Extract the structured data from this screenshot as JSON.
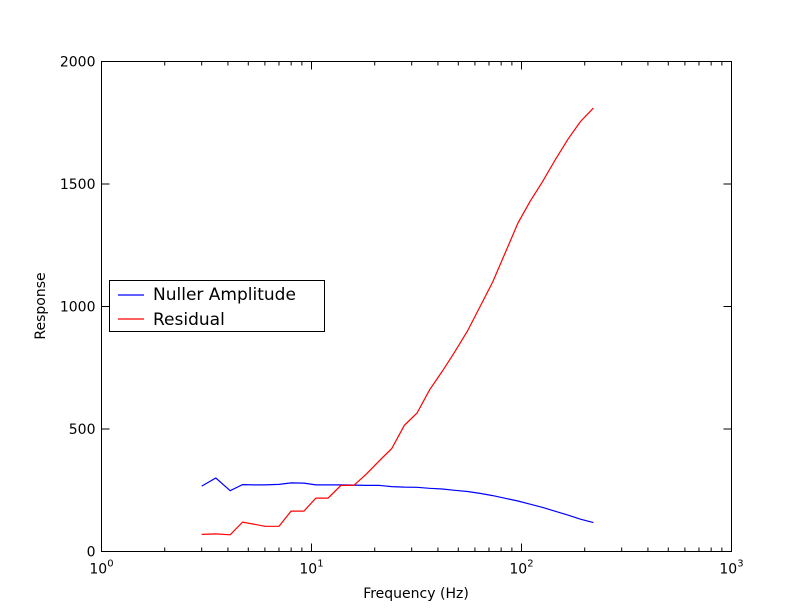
{
  "chart_data": {
    "type": "line",
    "xlabel": "Frequency (Hz)",
    "ylabel": "Response",
    "xscale": "log",
    "xlim": [
      1,
      1000
    ],
    "ylim": [
      0,
      2000
    ],
    "x_ticks": [
      {
        "base": "10",
        "exp": "0"
      },
      {
        "base": "10",
        "exp": "1"
      },
      {
        "base": "10",
        "exp": "2"
      },
      {
        "base": "10",
        "exp": "3"
      }
    ],
    "y_ticks": [
      "0",
      "500",
      "1000",
      "1500",
      "2000"
    ],
    "grid": false,
    "legend_position": "center-left",
    "series": [
      {
        "name": "Nuller Amplitude",
        "color": "#0000ff",
        "x": [
          3.0,
          3.5,
          4.1,
          4.7,
          5.3,
          6.0,
          7.0,
          8.0,
          9.2,
          10.5,
          12.0,
          13.8,
          15.9,
          18.2,
          21.0,
          24.1,
          27.7,
          31.8,
          36.5,
          41.9,
          48.1,
          55.3,
          63.5,
          72.9,
          83.7,
          96.1,
          110.0,
          126.0,
          145.0,
          167.0,
          191.0,
          220.0
        ],
        "values": [
          267,
          300,
          248,
          273,
          272,
          272,
          274,
          280,
          279,
          272,
          272,
          272,
          271,
          270,
          270,
          265,
          263,
          262,
          258,
          255,
          250,
          245,
          237,
          228,
          217,
          206,
          193,
          180,
          164,
          148,
          132,
          118
        ]
      },
      {
        "name": "Residual",
        "color": "#ff0000",
        "x": [
          3.0,
          3.5,
          4.1,
          4.7,
          5.3,
          6.0,
          7.0,
          8.0,
          9.2,
          10.5,
          12.0,
          13.8,
          15.9,
          18.2,
          21.0,
          24.1,
          27.7,
          31.8,
          36.5,
          41.9,
          48.1,
          55.3,
          63.5,
          72.9,
          83.7,
          96.1,
          110.0,
          126.0,
          145.0,
          167.0,
          191.0,
          220.0
        ],
        "values": [
          70,
          72,
          68,
          120,
          112,
          103,
          103,
          165,
          165,
          218,
          218,
          270,
          270,
          315,
          370,
          420,
          515,
          565,
          660,
          735,
          815,
          900,
          1000,
          1100,
          1220,
          1340,
          1430,
          1510,
          1600,
          1685,
          1755,
          1810
        ]
      }
    ]
  }
}
